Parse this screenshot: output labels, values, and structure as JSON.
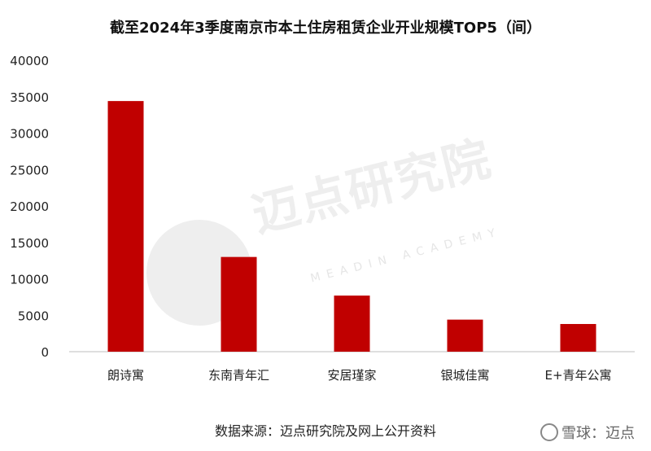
{
  "title": "截至2024年3季度南京市本土住房租赁企业开业规模TOP5（间）",
  "source": "数据来源：迈点研究院及网上公开资料",
  "watermark": {
    "cn": "迈点研究院",
    "en": "MEADIN ACADEMY"
  },
  "brand": {
    "text": "雪球：迈点",
    "icon": "snowball-logo-icon"
  },
  "chart_data": {
    "type": "bar",
    "title": "截至2024年3季度南京市本土住房租赁企业开业规模TOP5（间）",
    "categories": [
      "朗诗寓",
      "东南青年汇",
      "安居瑾家",
      "银城佳寓",
      "E+青年公寓"
    ],
    "values": [
      34400,
      13000,
      7700,
      4400,
      3800
    ],
    "ylim": [
      0,
      40000
    ],
    "yticks": [
      0,
      5000,
      10000,
      15000,
      20000,
      25000,
      30000,
      35000,
      40000
    ],
    "bar_color": "#c00000",
    "grid": false,
    "legend": "none",
    "xlabel": "",
    "ylabel": ""
  }
}
